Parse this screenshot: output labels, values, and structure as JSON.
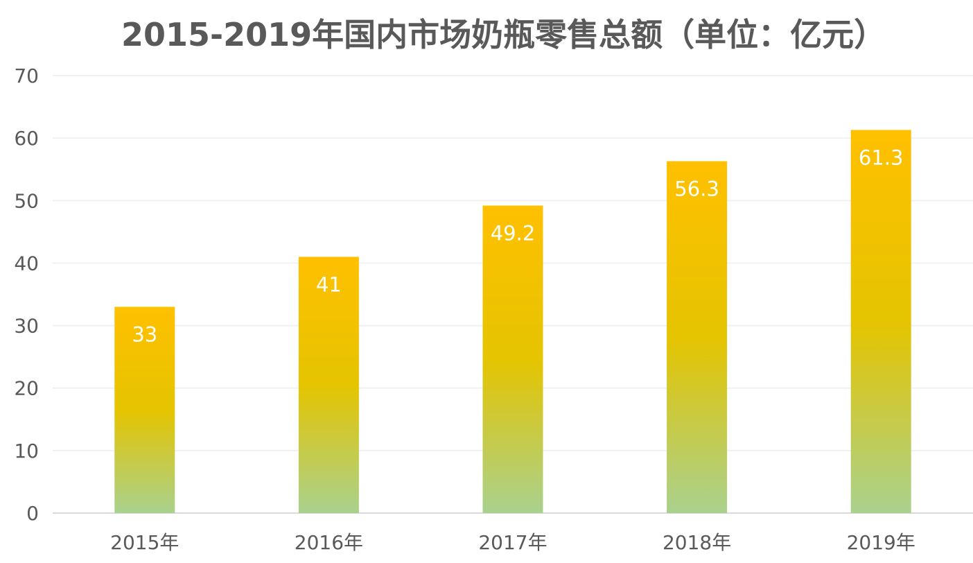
{
  "chart_data": {
    "type": "bar",
    "title": "2015-2019年国内市场奶瓶零售总额（单位：亿元）",
    "categories": [
      "2015年",
      "2016年",
      "2017年",
      "2018年",
      "2019年"
    ],
    "values": [
      33,
      41,
      49.2,
      56.3,
      61.3
    ],
    "data_labels": [
      "33",
      "41",
      "49.2",
      "56.3",
      "61.3"
    ],
    "y_ticks": [
      "0",
      "10",
      "20",
      "30",
      "40",
      "50",
      "60",
      "70"
    ],
    "ylim": [
      0,
      70
    ],
    "grid": true,
    "legend": "none",
    "colors": {
      "bar_top": "#FFC000",
      "bar_mid": "#E5C400",
      "bar_bottom": "#A9D18E",
      "grid": "#F0F0F0",
      "axis": "#D9D9D9",
      "text": "#595959"
    }
  }
}
